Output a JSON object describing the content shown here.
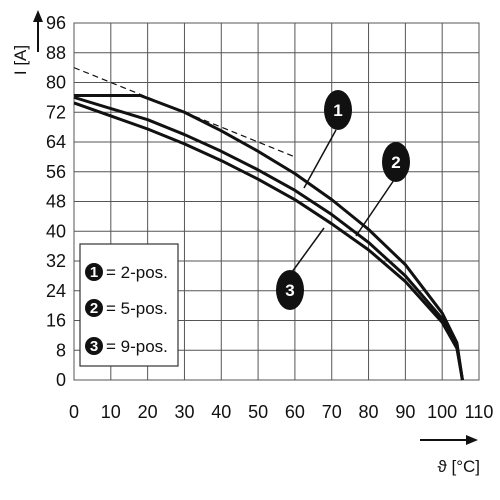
{
  "chart_data": {
    "type": "line",
    "title": "",
    "xlabel": "ϑ [°C]",
    "ylabel": "I [A]",
    "xlim": [
      0,
      110
    ],
    "ylim": [
      0,
      96
    ],
    "x_ticks": [
      0,
      10,
      20,
      30,
      40,
      50,
      60,
      70,
      80,
      90,
      100,
      110
    ],
    "y_ticks": [
      0,
      8,
      16,
      24,
      32,
      40,
      48,
      56,
      64,
      72,
      80,
      88,
      96
    ],
    "grid": true,
    "legend_position": "bottom-left",
    "series": [
      {
        "name": "= 2-pos.",
        "marker": "1",
        "x": [
          0,
          18,
          30,
          40,
          50,
          60,
          70,
          80,
          90,
          100,
          104,
          105.5
        ],
        "y": [
          76.5,
          76.5,
          72,
          67,
          61.5,
          55.5,
          48.5,
          40.5,
          31,
          18,
          10,
          0
        ]
      },
      {
        "name": "= 5-pos.",
        "marker": "2",
        "x": [
          0,
          10,
          20,
          30,
          40,
          50,
          60,
          70,
          80,
          90,
          100,
          104,
          105.5
        ],
        "y": [
          76,
          73,
          70,
          66,
          61.5,
          56.5,
          51,
          44.5,
          37,
          28,
          16.5,
          9,
          0
        ]
      },
      {
        "name": "= 9-pos.",
        "marker": "3",
        "x": [
          0,
          10,
          20,
          30,
          40,
          50,
          60,
          70,
          80,
          90,
          100,
          104,
          105.5
        ],
        "y": [
          74.5,
          71,
          67.5,
          63.5,
          59,
          54,
          48.5,
          42,
          35,
          26.5,
          15.5,
          8.5,
          0
        ]
      }
    ],
    "reference_line": {
      "x": [
        0,
        60
      ],
      "y": [
        84,
        60
      ],
      "style": "dashed"
    },
    "colors": {
      "line": "#111111",
      "grid": "#555555",
      "badge": "#111111"
    }
  }
}
